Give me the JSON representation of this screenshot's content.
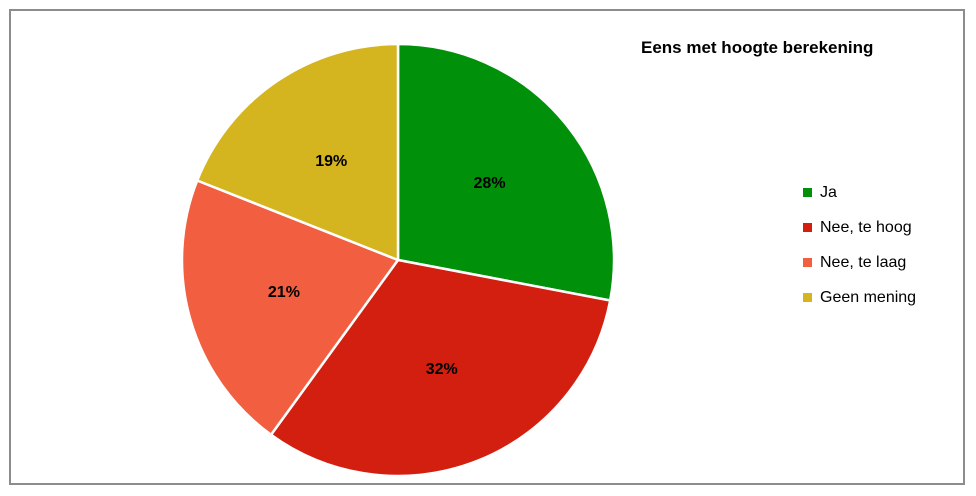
{
  "chart_data": {
    "type": "pie",
    "title": "Eens met hoogte berekening",
    "categories": [
      "Ja",
      "Nee, te hoog",
      "Nee, te laag",
      "Geen mening"
    ],
    "values": [
      28,
      32,
      21,
      19
    ],
    "labels": [
      "28%",
      "32%",
      "21%",
      "19%"
    ],
    "colors": [
      "#00900a",
      "#d21f10",
      "#f25e40",
      "#d4b520"
    ],
    "legend_position": "right"
  }
}
